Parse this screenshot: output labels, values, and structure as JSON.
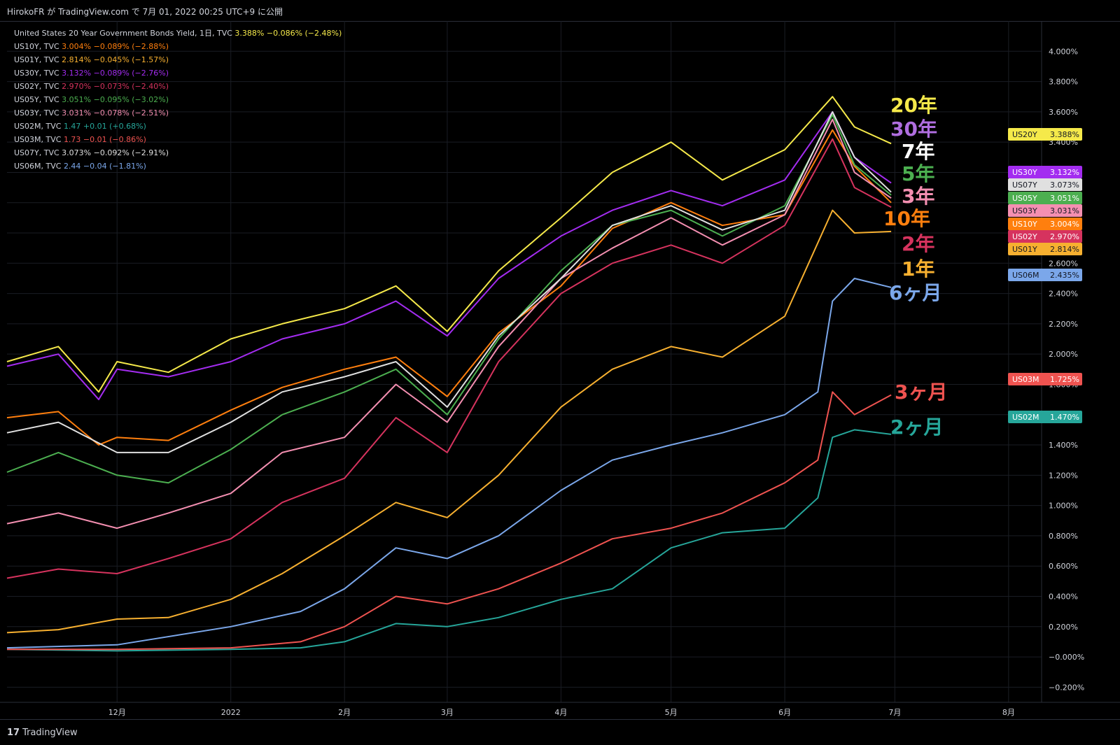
{
  "header": {
    "publisher": "HirokoFR が TradingView.com で 7月 01, 2022 00:25 UTC+9 に公開"
  },
  "footer": {
    "logo_text": "TradingView",
    "logo_mark": "17"
  },
  "chart_data": {
    "type": "line",
    "title": "",
    "ylim": [
      -0.3,
      4.2
    ],
    "y_ticks": [
      4.0,
      3.8,
      3.6,
      3.4,
      3.2,
      3.0,
      2.8,
      2.6,
      2.4,
      2.2,
      2.0,
      1.8,
      1.6,
      1.4,
      1.2,
      1.0,
      0.8,
      0.6,
      0.4,
      0.2,
      -0.0,
      -0.2
    ],
    "y_tick_labels": [
      "4.000%",
      "3.800%",
      "3.600%",
      "3.400%",
      "3.200%",
      "3.000%",
      "2.800%",
      "2.600%",
      "2.400%",
      "2.200%",
      "2.000%",
      "1.800%",
      "1.600%",
      "1.400%",
      "1.200%",
      "1.000%",
      "0.800%",
      "0.600%",
      "0.400%",
      "0.200%",
      "−0.000%",
      "−0.200%"
    ],
    "x_axis": {
      "start": "2021-11-01",
      "end": "2022-08-10",
      "ticks": [
        {
          "date": "2021-12-01",
          "label": "12月"
        },
        {
          "date": "2022-01-01",
          "label": "2022"
        },
        {
          "date": "2022-02-01",
          "label": "2月"
        },
        {
          "date": "2022-03-01",
          "label": "3月"
        },
        {
          "date": "2022-04-01",
          "label": "4月"
        },
        {
          "date": "2022-05-01",
          "label": "5月"
        },
        {
          "date": "2022-06-01",
          "label": "6月"
        },
        {
          "date": "2022-07-01",
          "label": "7月"
        },
        {
          "date": "2022-08-01",
          "label": "8月"
        }
      ]
    },
    "series": [
      {
        "name": "US20Y",
        "legend": "United States 20 Year Government Bonds Yield, 1日, TVC",
        "last": "3.388%",
        "change": "−0.086%",
        "pct": "(−2.48%)",
        "color": "#f5e94a",
        "tag": "US20Y",
        "tag_value": "3.388%",
        "annotation": "20年",
        "anno_color": "#f5e94a",
        "x": [
          "2021-11-01",
          "2021-11-15",
          "2021-11-26",
          "2021-12-01",
          "2021-12-15",
          "2022-01-01",
          "2022-01-15",
          "2022-02-01",
          "2022-02-15",
          "2022-03-01",
          "2022-03-15",
          "2022-04-01",
          "2022-04-15",
          "2022-05-01",
          "2022-05-15",
          "2022-06-01",
          "2022-06-14",
          "2022-06-20",
          "2022-06-30"
        ],
        "values": [
          1.95,
          2.05,
          1.75,
          1.95,
          1.88,
          2.1,
          2.2,
          2.3,
          2.45,
          2.15,
          2.55,
          2.9,
          3.2,
          3.4,
          3.15,
          3.35,
          3.7,
          3.5,
          3.39
        ]
      },
      {
        "name": "US10Y",
        "legend": "US10Y, TVC",
        "last": "3.004%",
        "change": "−0.089%",
        "pct": "(−2.88%)",
        "color": "#ff7f0e",
        "tag": "US10Y",
        "tag_value": "3.004%",
        "annotation": "10年",
        "anno_color": "#ff7f0e",
        "x": [
          "2021-11-01",
          "2021-11-15",
          "2021-11-26",
          "2021-12-01",
          "2021-12-15",
          "2022-01-01",
          "2022-01-15",
          "2022-02-01",
          "2022-02-15",
          "2022-03-01",
          "2022-03-15",
          "2022-04-01",
          "2022-04-15",
          "2022-05-01",
          "2022-05-15",
          "2022-06-01",
          "2022-06-14",
          "2022-06-20",
          "2022-06-30"
        ],
        "values": [
          1.58,
          1.62,
          1.4,
          1.45,
          1.43,
          1.63,
          1.78,
          1.9,
          1.98,
          1.72,
          2.14,
          2.45,
          2.83,
          3.0,
          2.85,
          2.92,
          3.48,
          3.24,
          3.0
        ]
      },
      {
        "name": "US01Y",
        "legend": "US01Y, TVC",
        "last": "2.814%",
        "change": "−0.045%",
        "pct": "(−1.57%)",
        "color": "#f7b030",
        "tag": "US01Y",
        "tag_value": "2.814%",
        "annotation": "1年",
        "anno_color": "#f7b030",
        "x": [
          "2021-11-01",
          "2021-11-15",
          "2021-12-01",
          "2021-12-15",
          "2022-01-01",
          "2022-01-15",
          "2022-02-01",
          "2022-02-15",
          "2022-03-01",
          "2022-03-15",
          "2022-04-01",
          "2022-04-15",
          "2022-05-01",
          "2022-05-15",
          "2022-06-01",
          "2022-06-14",
          "2022-06-20",
          "2022-06-30"
        ],
        "values": [
          0.16,
          0.18,
          0.25,
          0.26,
          0.38,
          0.55,
          0.8,
          1.02,
          0.92,
          1.2,
          1.65,
          1.9,
          2.05,
          1.98,
          2.25,
          2.95,
          2.8,
          2.81
        ]
      },
      {
        "name": "US30Y",
        "legend": "US30Y, TVC",
        "last": "3.132%",
        "change": "−0.089%",
        "pct": "(−2.76%)",
        "color": "#a32cf0",
        "tag": "US30Y",
        "tag_value": "3.132%",
        "annotation": "30年",
        "anno_color": "#b06ee0",
        "x": [
          "2021-11-01",
          "2021-11-15",
          "2021-11-26",
          "2021-12-01",
          "2021-12-15",
          "2022-01-01",
          "2022-01-15",
          "2022-02-01",
          "2022-02-15",
          "2022-03-01",
          "2022-03-15",
          "2022-04-01",
          "2022-04-15",
          "2022-05-01",
          "2022-05-15",
          "2022-06-01",
          "2022-06-14",
          "2022-06-20",
          "2022-06-30"
        ],
        "values": [
          1.92,
          2.0,
          1.7,
          1.9,
          1.85,
          1.95,
          2.1,
          2.2,
          2.35,
          2.12,
          2.5,
          2.78,
          2.95,
          3.08,
          2.98,
          3.15,
          3.6,
          3.3,
          3.13
        ]
      },
      {
        "name": "US02Y",
        "legend": "US02Y, TVC",
        "last": "2.970%",
        "change": "−0.073%",
        "pct": "(−2.40%)",
        "color": "#d6335e",
        "tag": "US02Y",
        "tag_value": "2.970%",
        "annotation": "2年",
        "anno_color": "#d6335e",
        "x": [
          "2021-11-01",
          "2021-11-15",
          "2021-12-01",
          "2021-12-15",
          "2022-01-01",
          "2022-01-15",
          "2022-02-01",
          "2022-02-15",
          "2022-03-01",
          "2022-03-15",
          "2022-04-01",
          "2022-04-15",
          "2022-05-01",
          "2022-05-15",
          "2022-06-01",
          "2022-06-14",
          "2022-06-20",
          "2022-06-30"
        ],
        "values": [
          0.52,
          0.58,
          0.55,
          0.65,
          0.78,
          1.02,
          1.18,
          1.58,
          1.35,
          1.95,
          2.4,
          2.6,
          2.72,
          2.6,
          2.85,
          3.42,
          3.1,
          2.97
        ]
      },
      {
        "name": "US05Y",
        "legend": "US05Y, TVC",
        "last": "3.051%",
        "change": "−0.095%",
        "pct": "(−3.02%)",
        "color": "#4caf50",
        "tag": "US05Y",
        "tag_value": "3.051%",
        "annotation": "5年",
        "anno_color": "#4caf50",
        "x": [
          "2021-11-01",
          "2021-11-15",
          "2021-12-01",
          "2021-12-15",
          "2022-01-01",
          "2022-01-15",
          "2022-02-01",
          "2022-02-15",
          "2022-03-01",
          "2022-03-15",
          "2022-04-01",
          "2022-04-15",
          "2022-05-01",
          "2022-05-15",
          "2022-06-01",
          "2022-06-14",
          "2022-06-20",
          "2022-06-30"
        ],
        "values": [
          1.22,
          1.35,
          1.2,
          1.15,
          1.37,
          1.6,
          1.75,
          1.9,
          1.6,
          2.1,
          2.55,
          2.85,
          2.95,
          2.78,
          2.98,
          3.58,
          3.25,
          3.05
        ]
      },
      {
        "name": "US03Y",
        "legend": "US03Y, TVC",
        "last": "3.031%",
        "change": "−0.078%",
        "pct": "(−2.51%)",
        "color": "#f48fb1",
        "tag": "US03Y",
        "tag_value": "3.031%",
        "annotation": "3年",
        "anno_color": "#f48fb1",
        "x": [
          "2021-11-01",
          "2021-11-15",
          "2021-12-01",
          "2021-12-15",
          "2022-01-01",
          "2022-01-15",
          "2022-02-01",
          "2022-02-15",
          "2022-03-01",
          "2022-03-15",
          "2022-04-01",
          "2022-04-15",
          "2022-05-01",
          "2022-05-15",
          "2022-06-01",
          "2022-06-14",
          "2022-06-20",
          "2022-06-30"
        ],
        "values": [
          0.88,
          0.95,
          0.85,
          0.95,
          1.08,
          1.35,
          1.45,
          1.8,
          1.55,
          2.05,
          2.5,
          2.7,
          2.9,
          2.72,
          2.92,
          3.55,
          3.2,
          3.03
        ]
      },
      {
        "name": "US02M",
        "legend": "US02M, TVC",
        "last": "1.47",
        "change": "+0.01",
        "pct": "(+0.68%)",
        "color": "#26a69a",
        "tag": "US02M",
        "tag_value": "1.470%",
        "annotation": "2ヶ月",
        "anno_color": "#26a69a",
        "x": [
          "2021-11-01",
          "2021-12-01",
          "2022-01-01",
          "2022-01-20",
          "2022-02-01",
          "2022-02-15",
          "2022-03-01",
          "2022-03-15",
          "2022-04-01",
          "2022-04-15",
          "2022-05-01",
          "2022-05-15",
          "2022-06-01",
          "2022-06-10",
          "2022-06-14",
          "2022-06-20",
          "2022-06-30"
        ],
        "values": [
          0.05,
          0.04,
          0.05,
          0.06,
          0.1,
          0.22,
          0.2,
          0.26,
          0.38,
          0.45,
          0.72,
          0.82,
          0.85,
          1.05,
          1.45,
          1.5,
          1.47
        ]
      },
      {
        "name": "US03M",
        "legend": "US03M, TVC",
        "last": "1.73",
        "change": "−0.01",
        "pct": "(−0.86%)",
        "color": "#ef5350",
        "tag": "US03M",
        "tag_value": "1.725%",
        "annotation": "3ヶ月",
        "anno_color": "#ef5350",
        "x": [
          "2021-11-01",
          "2021-12-01",
          "2022-01-01",
          "2022-01-20",
          "2022-02-01",
          "2022-02-15",
          "2022-03-01",
          "2022-03-15",
          "2022-04-01",
          "2022-04-15",
          "2022-05-01",
          "2022-05-15",
          "2022-06-01",
          "2022-06-10",
          "2022-06-14",
          "2022-06-20",
          "2022-06-30"
        ],
        "values": [
          0.05,
          0.05,
          0.06,
          0.1,
          0.2,
          0.4,
          0.35,
          0.45,
          0.62,
          0.78,
          0.85,
          0.95,
          1.15,
          1.3,
          1.75,
          1.6,
          1.73
        ]
      },
      {
        "name": "US07Y",
        "legend": "US07Y, TVC",
        "last": "3.073%",
        "change": "−0.092%",
        "pct": "(−2.91%)",
        "color": "#e0e0e0",
        "tag": "US07Y",
        "tag_value": "3.073%",
        "annotation": "7年",
        "anno_color": "#ffffff",
        "x": [
          "2021-11-01",
          "2021-11-15",
          "2021-12-01",
          "2021-12-15",
          "2022-01-01",
          "2022-01-15",
          "2022-02-01",
          "2022-02-15",
          "2022-03-01",
          "2022-03-15",
          "2022-04-01",
          "2022-04-15",
          "2022-05-01",
          "2022-05-15",
          "2022-06-01",
          "2022-06-14",
          "2022-06-20",
          "2022-06-30"
        ],
        "values": [
          1.48,
          1.55,
          1.35,
          1.35,
          1.55,
          1.75,
          1.85,
          1.95,
          1.65,
          2.12,
          2.5,
          2.85,
          2.98,
          2.82,
          2.95,
          3.6,
          3.3,
          3.07
        ]
      },
      {
        "name": "US06M",
        "legend": "US06M, TVC",
        "last": "2.44",
        "change": "−0.04",
        "pct": "(−1.81%)",
        "color": "#7ba7ea",
        "tag": "US06M",
        "tag_value": "2.435%",
        "annotation": "6ヶ月",
        "anno_color": "#7ba7ea",
        "x": [
          "2021-11-01",
          "2021-12-01",
          "2022-01-01",
          "2022-01-20",
          "2022-02-01",
          "2022-02-15",
          "2022-03-01",
          "2022-03-15",
          "2022-04-01",
          "2022-04-15",
          "2022-05-01",
          "2022-05-15",
          "2022-06-01",
          "2022-06-10",
          "2022-06-14",
          "2022-06-20",
          "2022-06-30"
        ],
        "values": [
          0.06,
          0.08,
          0.2,
          0.3,
          0.45,
          0.72,
          0.65,
          0.8,
          1.1,
          1.3,
          1.4,
          1.48,
          1.6,
          1.75,
          2.35,
          2.5,
          2.44
        ]
      }
    ]
  }
}
